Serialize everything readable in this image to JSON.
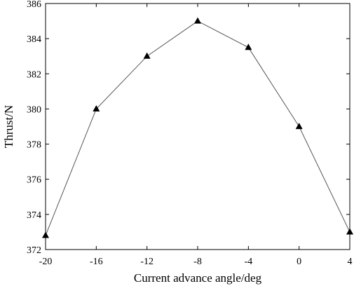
{
  "chart_data": {
    "type": "line",
    "title": "",
    "xlabel": "Current advance angle/deg",
    "ylabel": "Thrust/N",
    "xlim": [
      -20,
      4
    ],
    "ylim": [
      372,
      386
    ],
    "xticks": [
      -20,
      -16,
      -12,
      -8,
      -4,
      0,
      4
    ],
    "yticks": [
      372,
      374,
      376,
      378,
      380,
      382,
      384,
      386
    ],
    "grid": false,
    "marker": "triangle",
    "line_color": "#555555",
    "marker_color": "#000000",
    "series": [
      {
        "x": [
          -20,
          -16,
          -12,
          -8,
          -4,
          0,
          4
        ],
        "y": [
          372.8,
          380.0,
          383.0,
          385.0,
          383.5,
          379.0,
          373.0
        ]
      }
    ]
  }
}
